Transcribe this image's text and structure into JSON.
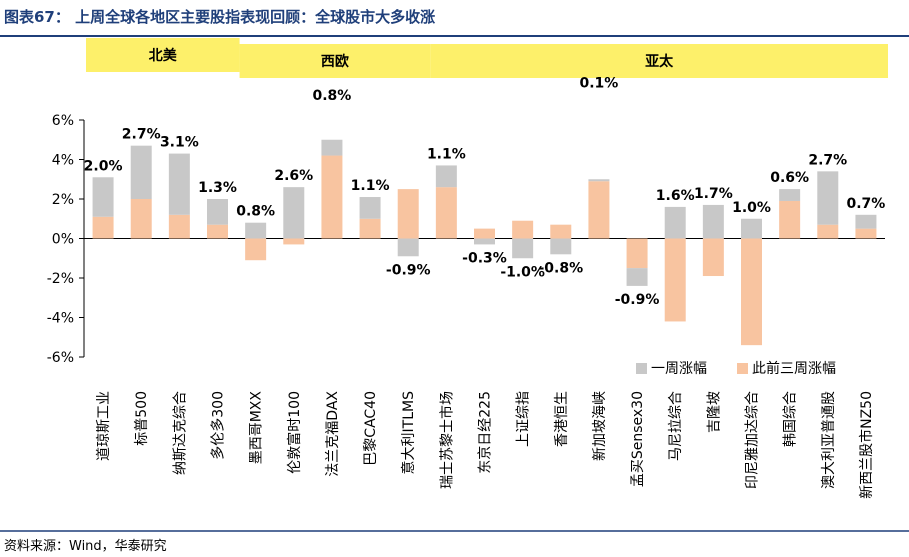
{
  "figure": {
    "title": "图表67：    上周全球各地区主要股指表现回顾：全球股市大多收涨",
    "source": "资料来源：Wind，华泰研究"
  },
  "colors": {
    "one_week": "#c8c8c8",
    "prior_three_weeks": "#f8c4a0",
    "region_band": "#fdf06a",
    "title": "#1f3f7a",
    "rule": "#1f3f7a"
  },
  "chart_data": {
    "type": "bar",
    "regions": [
      {
        "name": "北美",
        "start": 0,
        "end": 3
      },
      {
        "name": "西欧",
        "start": 4,
        "end": 8
      },
      {
        "name": "亚太",
        "start": 9,
        "end": 18
      }
    ],
    "categories": [
      "道琼斯工业",
      "标普500",
      "纳斯达克综合",
      "多伦多300",
      "墨西哥MXX",
      "伦敦富时100",
      "法兰克福DAX",
      "巴黎CAC40",
      "意大利ITLMS",
      "瑞士苏黎士市场",
      "东京日经225",
      "上证综指",
      "香港恒生",
      "新加坡海峡",
      "孟买Sensex30",
      "马尼拉综合",
      "吉隆坡",
      "印尼雅加达综合",
      "韩国综合",
      "澳大利亚普通股",
      "新西兰股市NZ50"
    ],
    "series": [
      {
        "name": "一周涨幅",
        "values": [
          2.0,
          2.7,
          3.1,
          1.3,
          0.8,
          2.6,
          0.8,
          1.1,
          -0.9,
          1.1,
          -0.3,
          -1.0,
          -0.8,
          0.1,
          -0.9,
          1.6,
          1.7,
          1.0,
          0.6,
          2.7,
          0.7
        ]
      },
      {
        "name": "此前三周涨幅",
        "values": [
          1.1,
          2.0,
          1.2,
          0.7,
          -1.1,
          -0.3,
          4.2,
          1.0,
          2.5,
          2.6,
          0.5,
          0.9,
          0.7,
          2.9,
          -1.5,
          -4.2,
          -1.9,
          -5.4,
          1.9,
          0.7,
          0.5
        ]
      }
    ],
    "data_labels": [
      "2.0%",
      "2.7%",
      "3.1%",
      "1.3%",
      "0.8%",
      "2.6%",
      "0.8%",
      "1.1%",
      "-0.9%",
      "1.1%",
      "-0.3%",
      "-1.0%",
      "-0.8%",
      "0.1%",
      "-0.9%",
      "1.6%",
      "1.7%",
      "1.0%",
      "0.6%",
      "2.7%",
      "0.7%"
    ],
    "y_ticks": [
      "6%",
      "4%",
      "2%",
      "0%",
      "-2%",
      "-4%",
      "-6%"
    ],
    "y_tick_values": [
      6,
      4,
      2,
      0,
      -2,
      -4,
      -6
    ],
    "ylim": [
      -6,
      6
    ],
    "legend_position": "bottom-right"
  }
}
